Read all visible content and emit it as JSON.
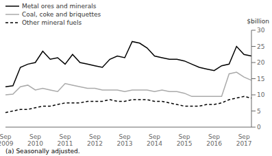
{
  "chart_data": {
    "type": "line",
    "ylabel": "$billion",
    "annotations": [
      "(a) Seasonally adjusted."
    ],
    "categories": [
      "Sep\n2009",
      null,
      null,
      null,
      "Sep\n2010",
      null,
      null,
      null,
      "Sep\n2011",
      null,
      null,
      null,
      "Sep\n2012",
      null,
      null,
      null,
      "Sep\n2013",
      null,
      null,
      null,
      "Sep\n2014",
      null,
      null,
      null,
      "Sep\n2015",
      null,
      null,
      null,
      "Sep\n2016",
      null,
      null,
      null,
      "Sep\n2017",
      null
    ],
    "series": [
      {
        "name": "Metal ores and minerals",
        "color": "#000000",
        "line_style": "solid",
        "values": [
          12.5,
          12.8,
          18.5,
          19.5,
          20.0,
          23.5,
          21.0,
          21.5,
          19.5,
          22.5,
          20.0,
          19.5,
          19.0,
          18.5,
          21.0,
          22.0,
          21.5,
          26.5,
          26.0,
          24.5,
          22.0,
          21.5,
          21.0,
          21.0,
          20.5,
          19.5,
          18.5,
          18.0,
          17.5,
          19.0,
          19.5,
          25.0,
          22.5,
          22.0
        ]
      },
      {
        "name": "Coal, coke and briquettes",
        "color": "#aaaaaa",
        "line_style": "solid",
        "values": [
          10.0,
          10.2,
          12.5,
          13.0,
          11.5,
          12.0,
          11.5,
          11.0,
          13.5,
          13.0,
          12.5,
          12.0,
          12.0,
          11.5,
          11.5,
          11.5,
          11.0,
          11.5,
          11.5,
          11.5,
          11.0,
          11.5,
          11.0,
          11.0,
          10.5,
          9.5,
          9.5,
          9.5,
          9.5,
          9.5,
          16.5,
          17.0,
          15.5,
          14.5
        ]
      },
      {
        "name": "Other mineral fuels",
        "color": "#000000",
        "line_style": "dashed",
        "values": [
          4.5,
          5.0,
          5.5,
          5.5,
          6.0,
          6.5,
          6.5,
          7.0,
          7.5,
          7.5,
          7.5,
          8.0,
          8.0,
          8.0,
          8.5,
          8.0,
          8.0,
          8.5,
          8.5,
          8.5,
          8.0,
          8.0,
          7.5,
          7.0,
          6.5,
          6.5,
          6.5,
          7.0,
          7.0,
          7.5,
          8.5,
          9.0,
          9.5,
          9.0
        ]
      }
    ],
    "ylim": [
      0,
      30
    ],
    "yticks": [
      0,
      5,
      10,
      15,
      20,
      25,
      30
    ],
    "grid": false,
    "legend": "upper left"
  }
}
